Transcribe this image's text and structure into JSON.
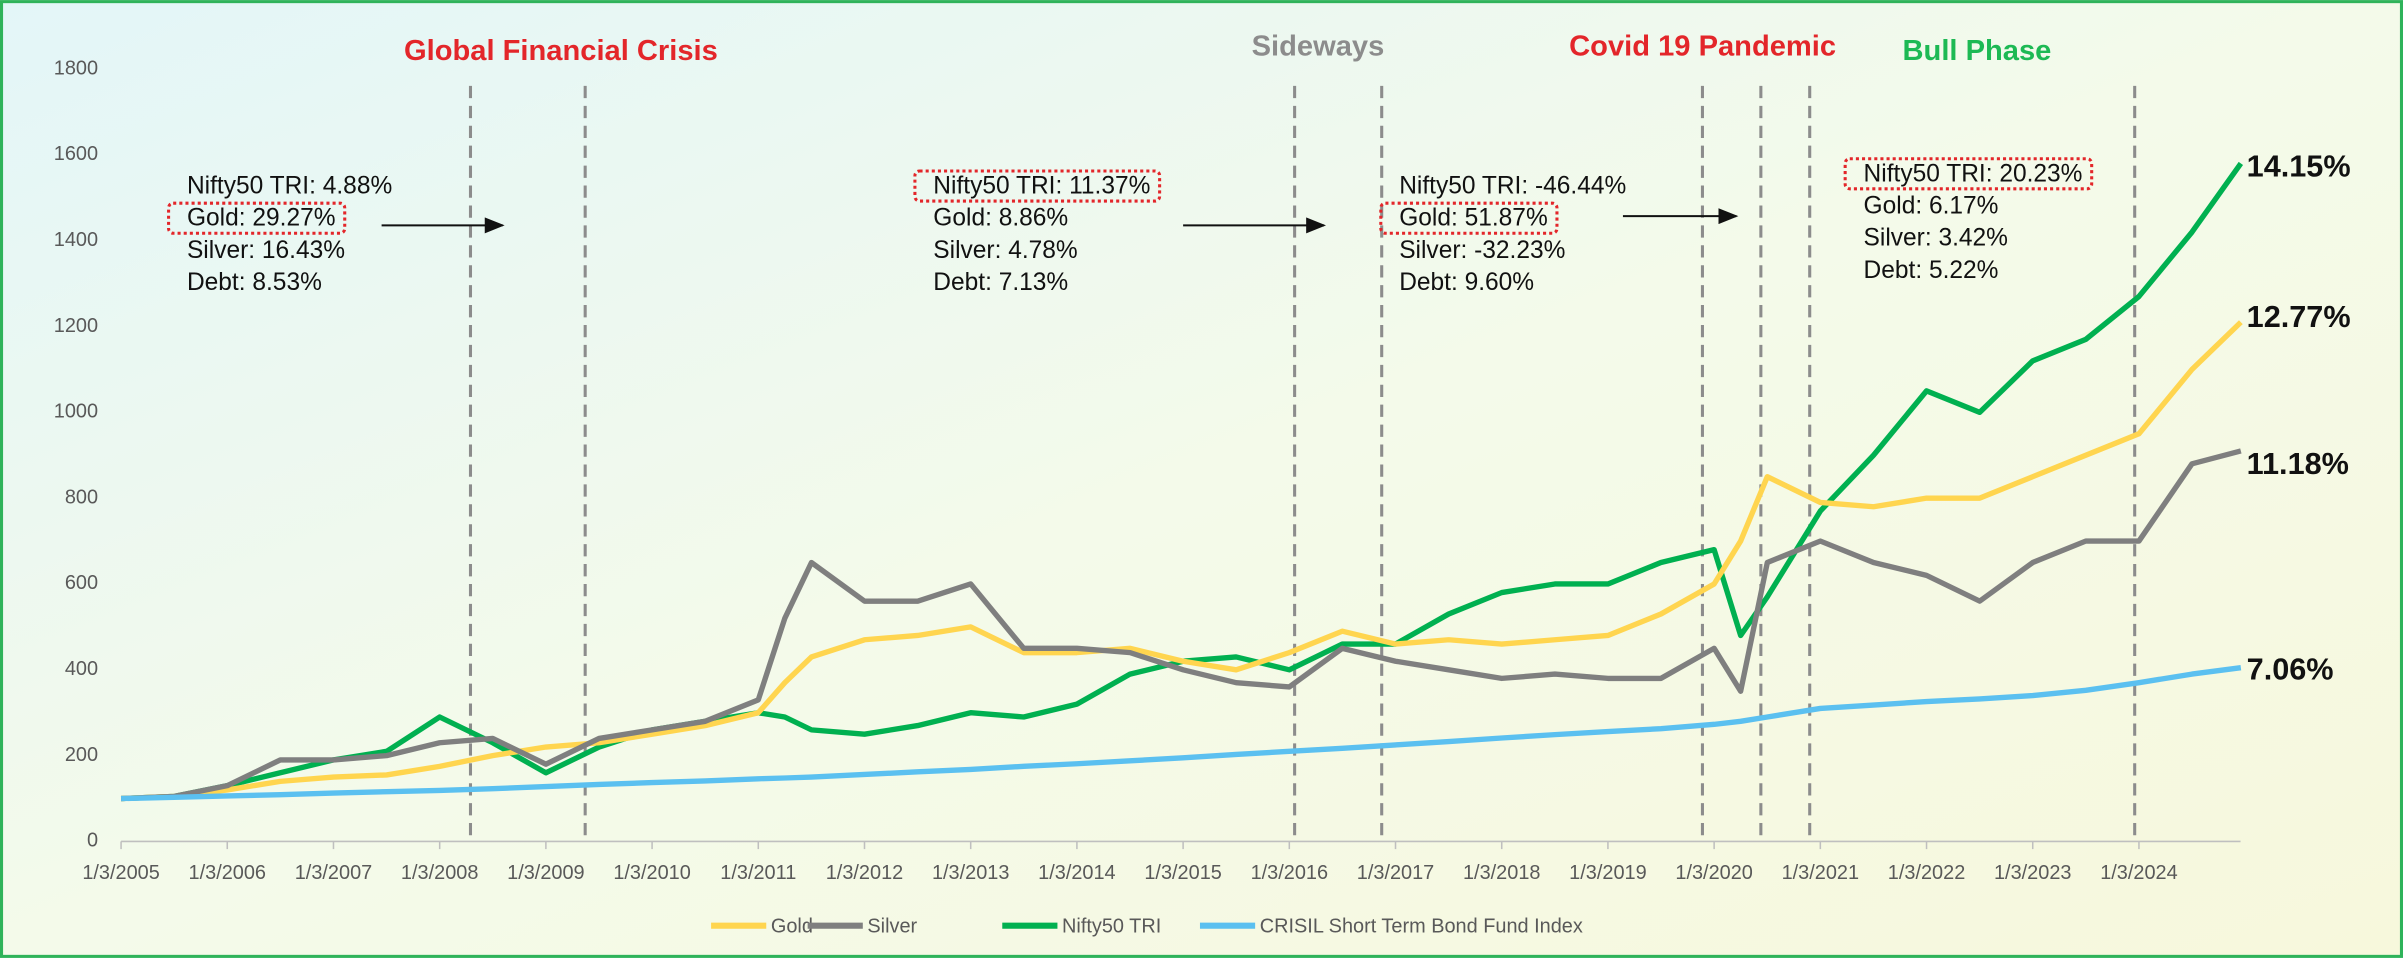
{
  "chart_data": {
    "type": "line",
    "x": [
      2005.0,
      2005.5,
      2006.0,
      2006.5,
      2007.0,
      2007.5,
      2008.0,
      2008.5,
      2009.0,
      2009.5,
      2010.0,
      2010.5,
      2011.0,
      2011.25,
      2011.5,
      2012.0,
      2012.5,
      2013.0,
      2013.5,
      2014.0,
      2014.5,
      2015.0,
      2015.5,
      2016.0,
      2016.5,
      2017.0,
      2017.5,
      2018.0,
      2018.5,
      2019.0,
      2019.5,
      2020.0,
      2020.25,
      2020.5,
      2021.0,
      2021.5,
      2022.0,
      2022.5,
      2023.0,
      2023.5,
      2024.0,
      2024.5,
      2024.96
    ],
    "series": [
      {
        "name": "Gold",
        "color": "#ffd54f",
        "end_label": "12.77%",
        "values": [
          100,
          105,
          120,
          140,
          150,
          155,
          175,
          200,
          220,
          230,
          250,
          270,
          300,
          370,
          430,
          470,
          480,
          500,
          440,
          440,
          450,
          420,
          400,
          440,
          490,
          460,
          470,
          460,
          470,
          480,
          530,
          600,
          700,
          850,
          790,
          780,
          800,
          800,
          850,
          900,
          950,
          1100,
          1210
        ]
      },
      {
        "name": "Silver",
        "color": "#7f7f7f",
        "end_label": "11.18%",
        "values": [
          100,
          105,
          130,
          190,
          190,
          200,
          230,
          240,
          180,
          240,
          260,
          280,
          330,
          520,
          650,
          560,
          560,
          600,
          450,
          450,
          440,
          400,
          370,
          360,
          450,
          420,
          400,
          380,
          390,
          380,
          380,
          450,
          350,
          650,
          700,
          650,
          620,
          560,
          650,
          700,
          700,
          880,
          910
        ]
      },
      {
        "name": "Nifty50 TRI",
        "color": "#00b050",
        "end_label": "14.15%",
        "values": [
          100,
          105,
          130,
          160,
          190,
          210,
          290,
          230,
          160,
          220,
          260,
          280,
          300,
          290,
          260,
          250,
          270,
          300,
          290,
          320,
          390,
          420,
          430,
          400,
          460,
          460,
          530,
          580,
          600,
          600,
          650,
          680,
          480,
          570,
          770,
          900,
          1050,
          1000,
          1120,
          1170,
          1270,
          1420,
          1580
        ]
      },
      {
        "name": "CRISIL Short Term Bond Fund Index",
        "color": "#5bc0f0",
        "end_label": "7.06%",
        "values": [
          100,
          103,
          106,
          109,
          113,
          116,
          119,
          123,
          128,
          133,
          137,
          141,
          146,
          148,
          150,
          156,
          162,
          168,
          175,
          181,
          188,
          195,
          203,
          210,
          217,
          225,
          233,
          241,
          249,
          256,
          263,
          273,
          280,
          290,
          310,
          318,
          326,
          332,
          340,
          352,
          370,
          390,
          405
        ]
      }
    ],
    "xlim": [
      2005,
      2025
    ],
    "xticks": [
      {
        "value": 2005,
        "label": "1/3/2005"
      },
      {
        "value": 2006,
        "label": "1/3/2006"
      },
      {
        "value": 2007,
        "label": "1/3/2007"
      },
      {
        "value": 2008,
        "label": "1/3/2008"
      },
      {
        "value": 2009,
        "label": "1/3/2009"
      },
      {
        "value": 2010,
        "label": "1/3/2010"
      },
      {
        "value": 2011,
        "label": "1/3/2011"
      },
      {
        "value": 2012,
        "label": "1/3/2012"
      },
      {
        "value": 2013,
        "label": "1/3/2013"
      },
      {
        "value": 2014,
        "label": "1/3/2014"
      },
      {
        "value": 2015,
        "label": "1/3/2015"
      },
      {
        "value": 2016,
        "label": "1/3/2016"
      },
      {
        "value": 2017,
        "label": "1/3/2017"
      },
      {
        "value": 2018,
        "label": "1/3/2018"
      },
      {
        "value": 2019,
        "label": "1/3/2019"
      },
      {
        "value": 2020,
        "label": "1/3/2020"
      },
      {
        "value": 2021,
        "label": "1/3/2021"
      },
      {
        "value": 2022,
        "label": "1/3/2022"
      },
      {
        "value": 2023,
        "label": "1/3/2023"
      },
      {
        "value": 2024,
        "label": "1/3/2024"
      }
    ],
    "ylim": [
      0,
      1800
    ],
    "yticks": [
      0,
      200,
      400,
      600,
      800,
      1000,
      1200,
      1400,
      1600,
      1800
    ],
    "event_lines": [
      2008.29,
      2009.37,
      2016.05,
      2016.87,
      2019.89,
      2020.44,
      2020.9,
      2023.96
    ],
    "phase_titles": [
      {
        "text": "Global Financial Crisis",
        "color": "#e3262a"
      },
      {
        "text": "Sideways",
        "color": "#8c8c8c"
      },
      {
        "text": "Covid 19 Pandemic",
        "color": "#e3262a"
      },
      {
        "text": "Bull Phase",
        "color": "#1db954"
      }
    ],
    "notes": [
      {
        "lines": [
          "Nifty50 TRI: 4.88%",
          "Gold: 29.27%",
          "Silver: 16.43%",
          "Debt: 8.53%"
        ],
        "highlight": 1
      },
      {
        "lines": [
          "Nifty50 TRI: 11.37%",
          "Gold: 8.86%",
          "Silver: 4.78%",
          "Debt: 7.13%"
        ],
        "highlight": 0
      },
      {
        "lines": [
          "Nifty50 TRI: -46.44%",
          "Gold: 51.87%",
          "Silver: -32.23%",
          "Debt: 9.60%"
        ],
        "highlight": 1
      },
      {
        "lines": [
          "Nifty50 TRI: 20.23%",
          "Gold: 6.17%",
          "Silver: 3.42%",
          "Debt: 5.22%"
        ],
        "highlight": 0
      }
    ],
    "legend": "bottom"
  }
}
